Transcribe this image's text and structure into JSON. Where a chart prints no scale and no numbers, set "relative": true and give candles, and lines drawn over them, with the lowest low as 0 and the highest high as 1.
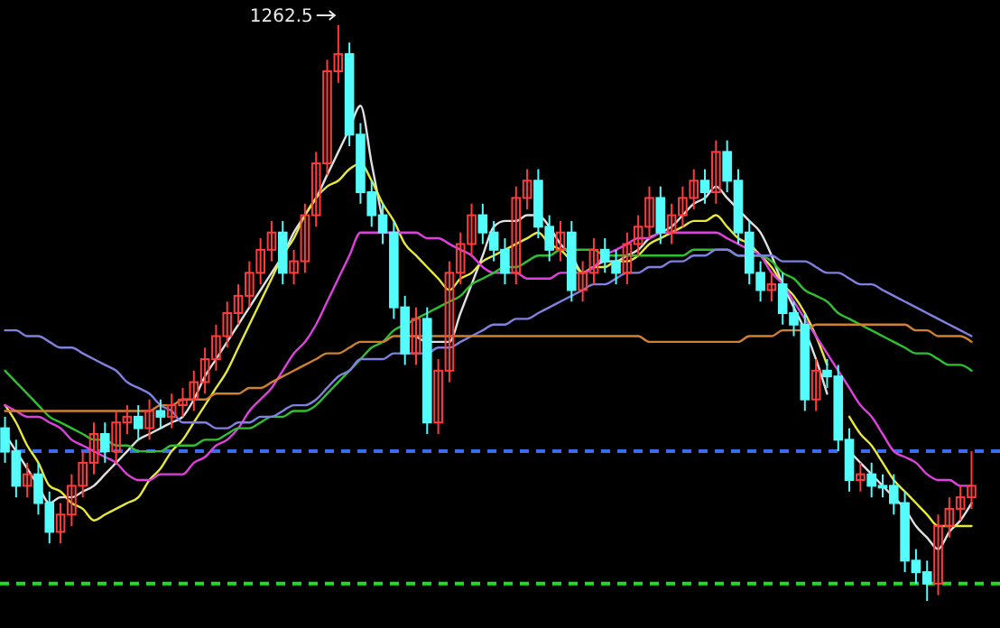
{
  "chart_data": {
    "type": "candlestick",
    "relative": true,
    "categories": [
      null,
      null,
      null,
      null,
      null,
      null,
      null,
      null,
      null,
      null,
      null,
      null,
      null,
      null,
      null,
      null,
      null,
      null,
      null,
      null,
      null,
      null,
      null,
      null,
      null,
      null,
      null,
      null,
      null,
      null,
      null,
      null,
      null,
      null,
      null,
      null,
      null,
      null,
      null,
      null,
      null,
      null,
      null,
      null,
      null,
      null,
      null,
      null,
      null,
      null,
      null,
      null,
      null,
      null,
      null,
      null,
      null,
      null,
      null,
      null,
      null,
      null,
      null,
      null,
      null,
      null,
      null,
      null,
      null,
      null,
      null,
      null,
      null,
      null,
      null,
      null,
      null,
      null,
      null,
      null,
      null,
      null,
      null,
      null,
      null,
      null,
      null,
      null
    ],
    "ohlc": [
      [
        0.3,
        0.32,
        0.24,
        0.26
      ],
      [
        0.26,
        0.28,
        0.18,
        0.2
      ],
      [
        0.2,
        0.24,
        0.18,
        0.22
      ],
      [
        0.22,
        0.24,
        0.15,
        0.17
      ],
      [
        0.17,
        0.19,
        0.1,
        0.12
      ],
      [
        0.12,
        0.17,
        0.1,
        0.15
      ],
      [
        0.15,
        0.22,
        0.13,
        0.2
      ],
      [
        0.2,
        0.26,
        0.18,
        0.24
      ],
      [
        0.24,
        0.31,
        0.22,
        0.29
      ],
      [
        0.29,
        0.31,
        0.24,
        0.26
      ],
      [
        0.26,
        0.33,
        0.24,
        0.31
      ],
      [
        0.31,
        0.34,
        0.29,
        0.32
      ],
      [
        0.32,
        0.34,
        0.28,
        0.3
      ],
      [
        0.3,
        0.35,
        0.28,
        0.33
      ],
      [
        0.33,
        0.35,
        0.3,
        0.32
      ],
      [
        0.32,
        0.36,
        0.3,
        0.34
      ],
      [
        0.34,
        0.37,
        0.32,
        0.35
      ],
      [
        0.35,
        0.4,
        0.33,
        0.38
      ],
      [
        0.38,
        0.44,
        0.36,
        0.42
      ],
      [
        0.42,
        0.48,
        0.4,
        0.46
      ],
      [
        0.46,
        0.52,
        0.44,
        0.5
      ],
      [
        0.5,
        0.55,
        0.48,
        0.53
      ],
      [
        0.53,
        0.59,
        0.51,
        0.57
      ],
      [
        0.57,
        0.63,
        0.55,
        0.61
      ],
      [
        0.61,
        0.66,
        0.59,
        0.64
      ],
      [
        0.64,
        0.66,
        0.55,
        0.57
      ],
      [
        0.57,
        0.61,
        0.55,
        0.59
      ],
      [
        0.59,
        0.69,
        0.57,
        0.67
      ],
      [
        0.67,
        0.78,
        0.65,
        0.76
      ],
      [
        0.76,
        0.94,
        0.74,
        0.92
      ],
      [
        0.92,
        1.0,
        0.9,
        0.95
      ],
      [
        0.95,
        0.97,
        0.79,
        0.81
      ],
      [
        0.81,
        0.83,
        0.69,
        0.71
      ],
      [
        0.71,
        0.73,
        0.65,
        0.67
      ],
      [
        0.67,
        0.69,
        0.62,
        0.64
      ],
      [
        0.64,
        0.66,
        0.49,
        0.51
      ],
      [
        0.51,
        0.53,
        0.41,
        0.43
      ],
      [
        0.43,
        0.51,
        0.41,
        0.49
      ],
      [
        0.49,
        0.51,
        0.29,
        0.31
      ],
      [
        0.31,
        0.42,
        0.29,
        0.4
      ],
      [
        0.4,
        0.59,
        0.38,
        0.57
      ],
      [
        0.57,
        0.64,
        0.55,
        0.62
      ],
      [
        0.62,
        0.69,
        0.6,
        0.67
      ],
      [
        0.67,
        0.69,
        0.62,
        0.64
      ],
      [
        0.64,
        0.66,
        0.59,
        0.61
      ],
      [
        0.61,
        0.63,
        0.55,
        0.57
      ],
      [
        0.57,
        0.72,
        0.55,
        0.7
      ],
      [
        0.7,
        0.75,
        0.68,
        0.73
      ],
      [
        0.73,
        0.75,
        0.63,
        0.65
      ],
      [
        0.65,
        0.67,
        0.59,
        0.61
      ],
      [
        0.61,
        0.66,
        0.59,
        0.64
      ],
      [
        0.64,
        0.66,
        0.52,
        0.54
      ],
      [
        0.54,
        0.59,
        0.52,
        0.57
      ],
      [
        0.57,
        0.63,
        0.55,
        0.61
      ],
      [
        0.61,
        0.63,
        0.57,
        0.59
      ],
      [
        0.59,
        0.61,
        0.55,
        0.57
      ],
      [
        0.57,
        0.64,
        0.55,
        0.62
      ],
      [
        0.62,
        0.67,
        0.6,
        0.65
      ],
      [
        0.65,
        0.72,
        0.63,
        0.7
      ],
      [
        0.7,
        0.72,
        0.62,
        0.64
      ],
      [
        0.64,
        0.69,
        0.62,
        0.67
      ],
      [
        0.67,
        0.72,
        0.65,
        0.7
      ],
      [
        0.7,
        0.75,
        0.68,
        0.73
      ],
      [
        0.73,
        0.75,
        0.69,
        0.71
      ],
      [
        0.71,
        0.8,
        0.69,
        0.78
      ],
      [
        0.78,
        0.8,
        0.71,
        0.73
      ],
      [
        0.73,
        0.75,
        0.62,
        0.64
      ],
      [
        0.64,
        0.66,
        0.55,
        0.57
      ],
      [
        0.57,
        0.59,
        0.52,
        0.54
      ],
      [
        0.54,
        0.57,
        0.52,
        0.55
      ],
      [
        0.55,
        0.57,
        0.48,
        0.5
      ],
      [
        0.5,
        0.52,
        0.46,
        0.48
      ],
      [
        0.48,
        0.5,
        0.33,
        0.35
      ],
      [
        0.35,
        0.42,
        0.33,
        0.4
      ],
      [
        0.4,
        0.42,
        0.37,
        0.39
      ],
      [
        0.39,
        0.41,
        0.26,
        0.28
      ],
      [
        0.28,
        0.3,
        0.19,
        0.21
      ],
      [
        0.21,
        0.24,
        0.19,
        0.22
      ],
      [
        0.22,
        0.24,
        0.18,
        0.2
      ],
      [
        0.2,
        0.22,
        0.18,
        0.2
      ],
      [
        0.2,
        0.22,
        0.15,
        0.17
      ],
      [
        0.17,
        0.19,
        0.05,
        0.07
      ],
      [
        0.07,
        0.09,
        0.03,
        0.05
      ],
      [
        0.05,
        0.07,
        0.0,
        0.03
      ],
      [
        0.03,
        0.15,
        0.01,
        0.13
      ],
      [
        0.13,
        0.18,
        0.11,
        0.16
      ],
      [
        0.16,
        0.2,
        0.14,
        0.18
      ],
      [
        0.18,
        0.26,
        0.16,
        0.2
      ]
    ],
    "colors": [
      "#54fcfc",
      "#54fcfc",
      "#ff3b3b",
      "#54fcfc",
      "#54fcfc",
      "#ff3b3b",
      "#ff3b3b",
      "#ff3b3b",
      "#ff3b3b",
      "#54fcfc",
      "#ff3b3b",
      "#ff3b3b",
      "#54fcfc",
      "#ff3b3b",
      "#54fcfc",
      "#ff3b3b",
      "#ff3b3b",
      "#ff3b3b",
      "#ff3b3b",
      "#ff3b3b",
      "#ff3b3b",
      "#ff3b3b",
      "#ff3b3b",
      "#ff3b3b",
      "#ff3b3b",
      "#54fcfc",
      "#ff3b3b",
      "#ff3b3b",
      "#ff3b3b",
      "#ff3b3b",
      "#ff3b3b",
      "#54fcfc",
      "#54fcfc",
      "#54fcfc",
      "#54fcfc",
      "#54fcfc",
      "#54fcfc",
      "#ff3b3b",
      "#54fcfc",
      "#ff3b3b",
      "#ff3b3b",
      "#ff3b3b",
      "#ff3b3b",
      "#54fcfc",
      "#54fcfc",
      "#54fcfc",
      "#ff3b3b",
      "#ff3b3b",
      "#54fcfc",
      "#54fcfc",
      "#ff3b3b",
      "#54fcfc",
      "#ff3b3b",
      "#ff3b3b",
      "#54fcfc",
      "#54fcfc",
      "#ff3b3b",
      "#ff3b3b",
      "#ff3b3b",
      "#54fcfc",
      "#ff3b3b",
      "#ff3b3b",
      "#ff3b3b",
      "#54fcfc",
      "#ff3b3b",
      "#54fcfc",
      "#54fcfc",
      "#54fcfc",
      "#54fcfc",
      "#ff3b3b",
      "#54fcfc",
      "#54fcfc",
      "#54fcfc",
      "#ff3b3b",
      "#54fcfc",
      "#54fcfc",
      "#54fcfc",
      "#ff3b3b",
      "#54fcfc",
      "#54fcfc",
      "#54fcfc",
      "#54fcfc",
      "#54fcfc",
      "#54fcfc",
      "#ff3b3b",
      "#ff3b3b",
      "#ff3b3b",
      "#ff3b3b"
    ],
    "series": [
      {
        "type": "line",
        "color": "#e0e0e0",
        "values": [
          0.29,
          0.26,
          0.23,
          0.2,
          0.17,
          0.18,
          0.18,
          0.19,
          0.2,
          0.22,
          0.24,
          0.26,
          0.28,
          0.29,
          0.3,
          0.31,
          0.32,
          0.35,
          0.39,
          0.42,
          0.45,
          0.48,
          0.51,
          0.54,
          0.57,
          0.6,
          0.64,
          0.67,
          0.7,
          0.74,
          0.78,
          0.82,
          0.86,
          0.76,
          0.66,
          null,
          null,
          0.46,
          0.45,
          0.45,
          0.45,
          0.5,
          0.55,
          0.6,
          0.65,
          0.66,
          0.66,
          0.67,
          0.67,
          0.65,
          0.62,
          0.6,
          0.57,
          0.58,
          0.59,
          0.59,
          0.6,
          0.61,
          0.63,
          0.64,
          0.65,
          0.67,
          0.69,
          0.7,
          0.72,
          0.7,
          0.68,
          0.66,
          0.64,
          0.6,
          0.55,
          0.51,
          0.47,
          0.42,
          0.36,
          null,
          0.26,
          0.24,
          0.22,
          0.2,
          0.18,
          0.16,
          0.13,
          0.11,
          0.09,
          0.12,
          0.14,
          0.17
        ]
      },
      {
        "type": "line",
        "color": "#e8e83a",
        "values": [
          0.34,
          0.31,
          0.27,
          0.24,
          0.2,
          0.19,
          0.17,
          0.16,
          0.14,
          0.15,
          0.16,
          0.17,
          0.18,
          0.21,
          0.23,
          0.26,
          0.28,
          0.31,
          0.34,
          0.37,
          0.4,
          0.44,
          0.48,
          0.52,
          0.56,
          0.6,
          0.63,
          0.67,
          0.7,
          0.72,
          0.73,
          0.75,
          0.76,
          0.73,
          0.69,
          0.66,
          0.62,
          0.6,
          0.58,
          0.56,
          0.54,
          0.56,
          0.57,
          0.59,
          0.6,
          0.61,
          0.62,
          0.63,
          0.64,
          0.62,
          0.61,
          0.59,
          0.57,
          0.58,
          0.58,
          0.59,
          0.59,
          0.6,
          0.62,
          0.63,
          0.64,
          0.65,
          0.66,
          0.66,
          0.67,
          0.65,
          0.63,
          0.62,
          0.6,
          0.58,
          0.55,
          0.53,
          0.5,
          0.46,
          0.41,
          null,
          0.32,
          0.29,
          0.27,
          0.24,
          0.21,
          0.19,
          0.17,
          0.15,
          0.13,
          0.13,
          0.13,
          0.13
        ]
      },
      {
        "type": "line",
        "color": "#e040e0",
        "values": [
          0.34,
          0.33,
          0.32,
          0.32,
          0.31,
          0.3,
          0.28,
          0.27,
          0.26,
          0.25,
          0.24,
          0.22,
          0.21,
          0.21,
          0.22,
          0.22,
          0.22,
          0.24,
          0.25,
          0.27,
          0.28,
          0.3,
          0.33,
          0.35,
          0.37,
          0.4,
          0.43,
          0.45,
          0.48,
          0.52,
          0.56,
          0.6,
          0.64,
          0.64,
          0.64,
          0.64,
          0.64,
          0.64,
          0.63,
          0.63,
          0.62,
          0.61,
          0.6,
          0.58,
          0.57,
          0.57,
          0.57,
          0.56,
          0.56,
          0.56,
          0.57,
          0.57,
          0.57,
          0.58,
          0.6,
          0.61,
          0.62,
          0.63,
          0.63,
          0.64,
          0.64,
          0.64,
          0.64,
          0.64,
          0.64,
          0.63,
          0.62,
          0.61,
          0.6,
          0.57,
          0.55,
          0.52,
          0.49,
          0.46,
          0.43,
          0.4,
          0.37,
          0.34,
          0.32,
          0.29,
          0.26,
          0.25,
          0.24,
          0.22,
          0.21,
          0.21,
          0.2,
          0.2
        ]
      },
      {
        "type": "line",
        "color": "#30c030",
        "values": [
          0.4,
          0.38,
          0.36,
          0.34,
          0.32,
          0.31,
          0.3,
          0.29,
          0.28,
          0.28,
          0.27,
          0.27,
          0.26,
          0.26,
          0.26,
          0.27,
          0.27,
          0.27,
          0.28,
          0.28,
          0.29,
          0.3,
          0.3,
          0.31,
          0.32,
          0.32,
          0.33,
          0.33,
          0.34,
          0.36,
          0.38,
          0.4,
          0.42,
          0.44,
          0.45,
          0.47,
          0.48,
          0.49,
          0.5,
          0.51,
          0.52,
          0.53,
          0.55,
          0.56,
          0.57,
          0.58,
          0.58,
          0.59,
          0.6,
          0.6,
          0.61,
          0.61,
          0.61,
          0.61,
          0.6,
          0.6,
          0.6,
          0.6,
          0.6,
          0.6,
          0.6,
          0.6,
          0.61,
          0.61,
          0.61,
          0.61,
          0.6,
          0.6,
          0.6,
          0.59,
          0.57,
          0.56,
          0.54,
          0.53,
          0.52,
          0.5,
          0.49,
          0.48,
          0.47,
          0.46,
          0.45,
          0.44,
          0.43,
          0.43,
          0.42,
          0.41,
          0.41,
          0.4
        ]
      },
      {
        "type": "line",
        "color": "#8080e0",
        "values": [
          0.47,
          0.47,
          0.46,
          0.46,
          0.45,
          0.44,
          0.44,
          0.43,
          0.42,
          0.41,
          0.4,
          0.38,
          0.37,
          0.36,
          0.34,
          0.33,
          0.31,
          0.31,
          0.31,
          0.3,
          0.3,
          0.31,
          0.31,
          0.32,
          0.32,
          0.33,
          0.34,
          0.34,
          0.35,
          0.37,
          0.39,
          0.4,
          0.42,
          0.42,
          0.42,
          0.43,
          0.43,
          0.43,
          0.43,
          0.44,
          0.44,
          0.45,
          0.46,
          0.47,
          0.48,
          0.48,
          0.49,
          0.49,
          0.5,
          0.51,
          0.52,
          0.53,
          0.54,
          0.55,
          0.55,
          0.56,
          0.57,
          0.57,
          0.58,
          0.58,
          0.59,
          0.59,
          0.6,
          0.6,
          0.61,
          0.61,
          0.6,
          0.6,
          0.6,
          0.6,
          0.59,
          0.59,
          0.59,
          0.58,
          0.57,
          0.57,
          0.56,
          0.55,
          0.55,
          0.54,
          0.53,
          0.52,
          0.51,
          0.5,
          0.49,
          0.48,
          0.47,
          0.46
        ]
      },
      {
        "type": "line",
        "color": "#d08030",
        "values": [
          0.33,
          0.33,
          0.33,
          0.33,
          0.33,
          0.33,
          0.33,
          0.33,
          0.33,
          0.33,
          0.33,
          0.33,
          0.33,
          0.33,
          0.34,
          0.34,
          0.35,
          0.35,
          0.35,
          0.36,
          0.36,
          0.36,
          0.37,
          0.37,
          0.38,
          0.39,
          0.4,
          0.41,
          0.42,
          0.43,
          0.43,
          0.44,
          0.45,
          0.45,
          0.45,
          0.46,
          0.46,
          0.46,
          0.46,
          0.46,
          0.46,
          0.46,
          0.46,
          0.46,
          0.46,
          0.46,
          0.46,
          0.46,
          0.46,
          0.46,
          0.46,
          0.46,
          0.46,
          0.46,
          0.46,
          0.46,
          0.46,
          0.46,
          0.45,
          0.45,
          0.45,
          0.45,
          0.45,
          0.45,
          0.45,
          0.45,
          0.45,
          0.46,
          0.46,
          0.46,
          0.47,
          0.47,
          0.47,
          0.48,
          0.48,
          0.48,
          0.48,
          0.48,
          0.48,
          0.48,
          0.48,
          0.48,
          0.47,
          0.47,
          0.46,
          0.46,
          0.46,
          0.45
        ]
      }
    ],
    "ref_lines": [
      {
        "axis": "y",
        "value": 0.26,
        "color": "#3a6cf0",
        "line_style": "dashed"
      },
      {
        "axis": "y",
        "value": 0.03,
        "color": "#22dd22",
        "line_style": "dashed"
      }
    ],
    "annotations": [
      "1262.5"
    ]
  }
}
